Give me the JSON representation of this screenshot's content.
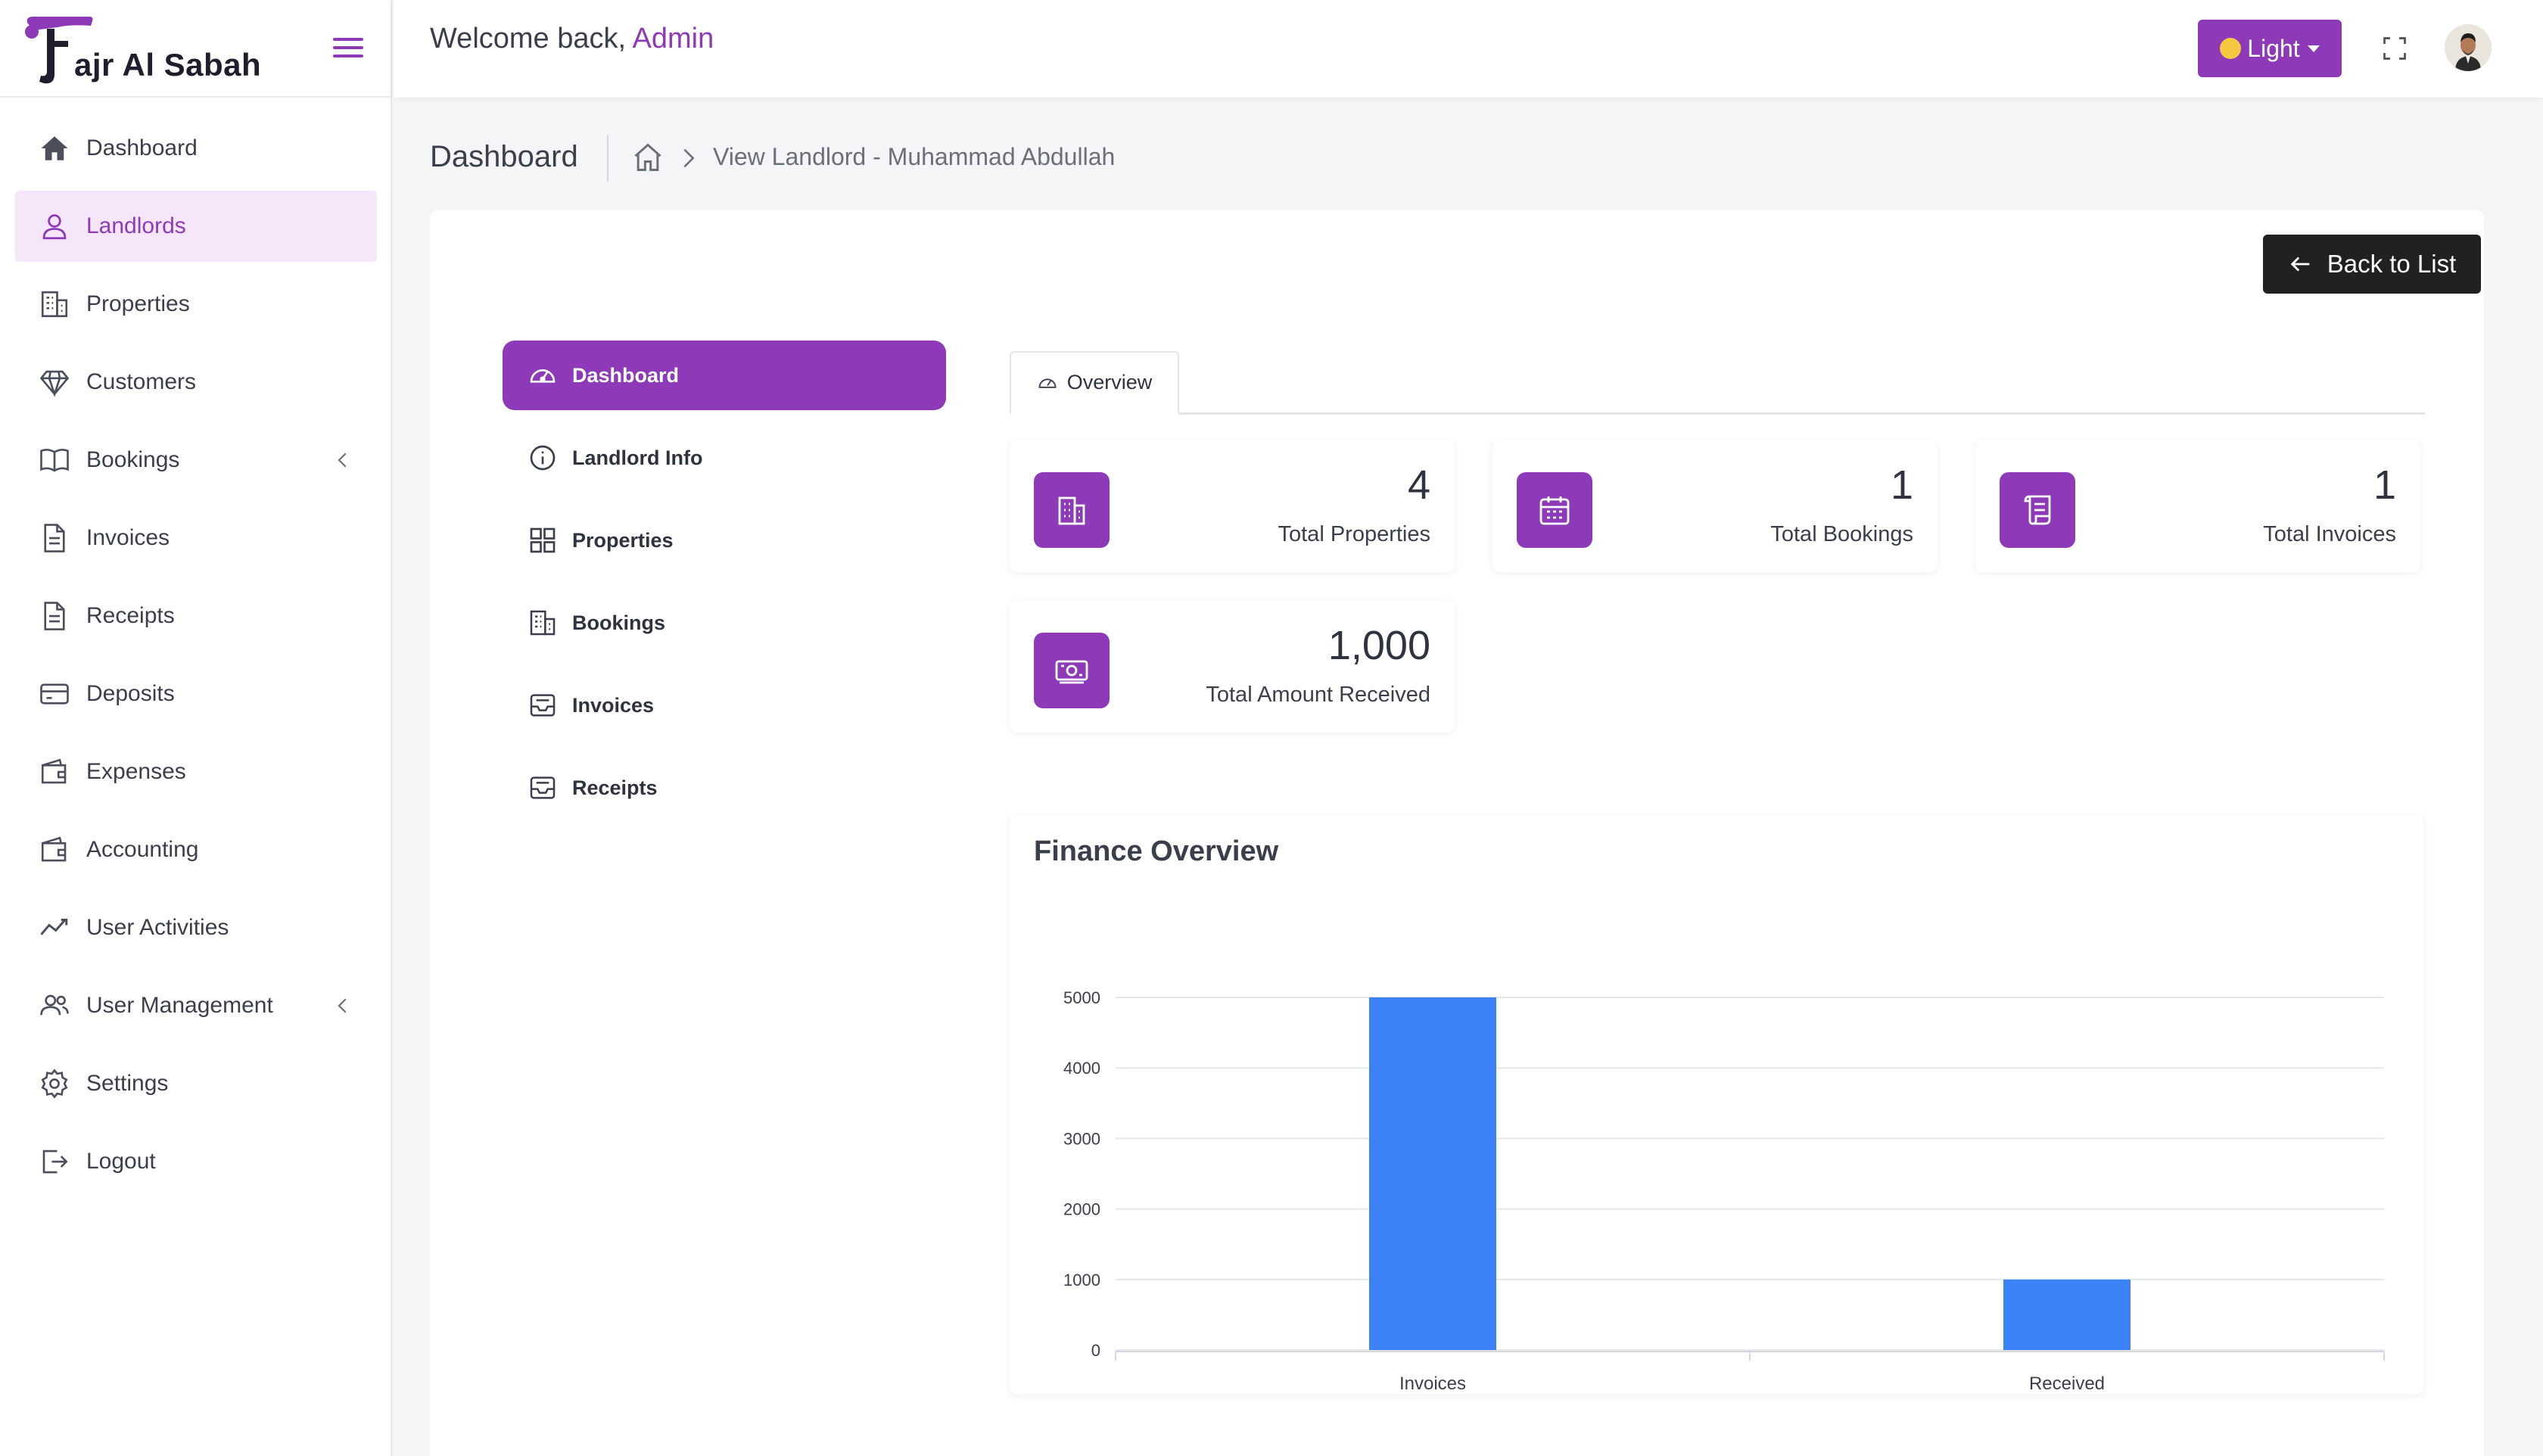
{
  "brand": {
    "name": "ajr Al Sabah",
    "logo_icon": "fajr-logo-icon"
  },
  "header": {
    "welcome_prefix": "Welcome back, ",
    "user": "Admin",
    "theme_label": "Light",
    "accent": "#8e3ab8"
  },
  "sidebar": {
    "items": [
      {
        "label": "Dashboard",
        "icon": "home-icon"
      },
      {
        "label": "Landlords",
        "icon": "user-icon",
        "active": true
      },
      {
        "label": "Properties",
        "icon": "building-icon"
      },
      {
        "label": "Customers",
        "icon": "diamond-icon"
      },
      {
        "label": "Bookings",
        "icon": "book-icon",
        "has_children": true
      },
      {
        "label": "Invoices",
        "icon": "document-icon"
      },
      {
        "label": "Receipts",
        "icon": "document-icon"
      },
      {
        "label": "Deposits",
        "icon": "card-icon"
      },
      {
        "label": "Expenses",
        "icon": "wallet-icon"
      },
      {
        "label": "Accounting",
        "icon": "wallet-icon"
      },
      {
        "label": "User Activities",
        "icon": "activity-icon"
      },
      {
        "label": "User Management",
        "icon": "users-icon",
        "has_children": true
      },
      {
        "label": "Settings",
        "icon": "gear-icon"
      },
      {
        "label": "Logout",
        "icon": "logout-icon"
      }
    ]
  },
  "breadcrumb": {
    "title": "Dashboard",
    "current": "View Landlord - Muhammad Abdullah"
  },
  "actions": {
    "back_label": "Back to List"
  },
  "subnav": {
    "items": [
      {
        "label": "Dashboard",
        "icon": "speedometer-icon",
        "active": true
      },
      {
        "label": "Landlord Info",
        "icon": "info-icon"
      },
      {
        "label": "Properties",
        "icon": "grid-icon"
      },
      {
        "label": "Bookings",
        "icon": "building-icon"
      },
      {
        "label": "Invoices",
        "icon": "inbox-icon"
      },
      {
        "label": "Receipts",
        "icon": "inbox-icon"
      }
    ]
  },
  "tabs": [
    {
      "label": "Overview",
      "icon": "speedometer-icon"
    }
  ],
  "stats": [
    {
      "value": "4",
      "label": "Total Properties",
      "icon": "building-icon"
    },
    {
      "value": "1",
      "label": "Total Bookings",
      "icon": "calendar-icon"
    },
    {
      "value": "1",
      "label": "Total Invoices",
      "icon": "receipt-icon"
    },
    {
      "value": "1,000",
      "label": "Total Amount Received",
      "icon": "cash-icon"
    }
  ],
  "chart_data": {
    "type": "bar",
    "title": "Finance Overview",
    "categories": [
      "Invoices",
      "Received"
    ],
    "values": [
      5000,
      1000
    ],
    "ylim": [
      0,
      5000
    ],
    "yticks": [
      "0",
      "1000",
      "2000",
      "3000",
      "4000",
      "5000"
    ],
    "grid": true,
    "bar_color": "#3b82f6"
  }
}
